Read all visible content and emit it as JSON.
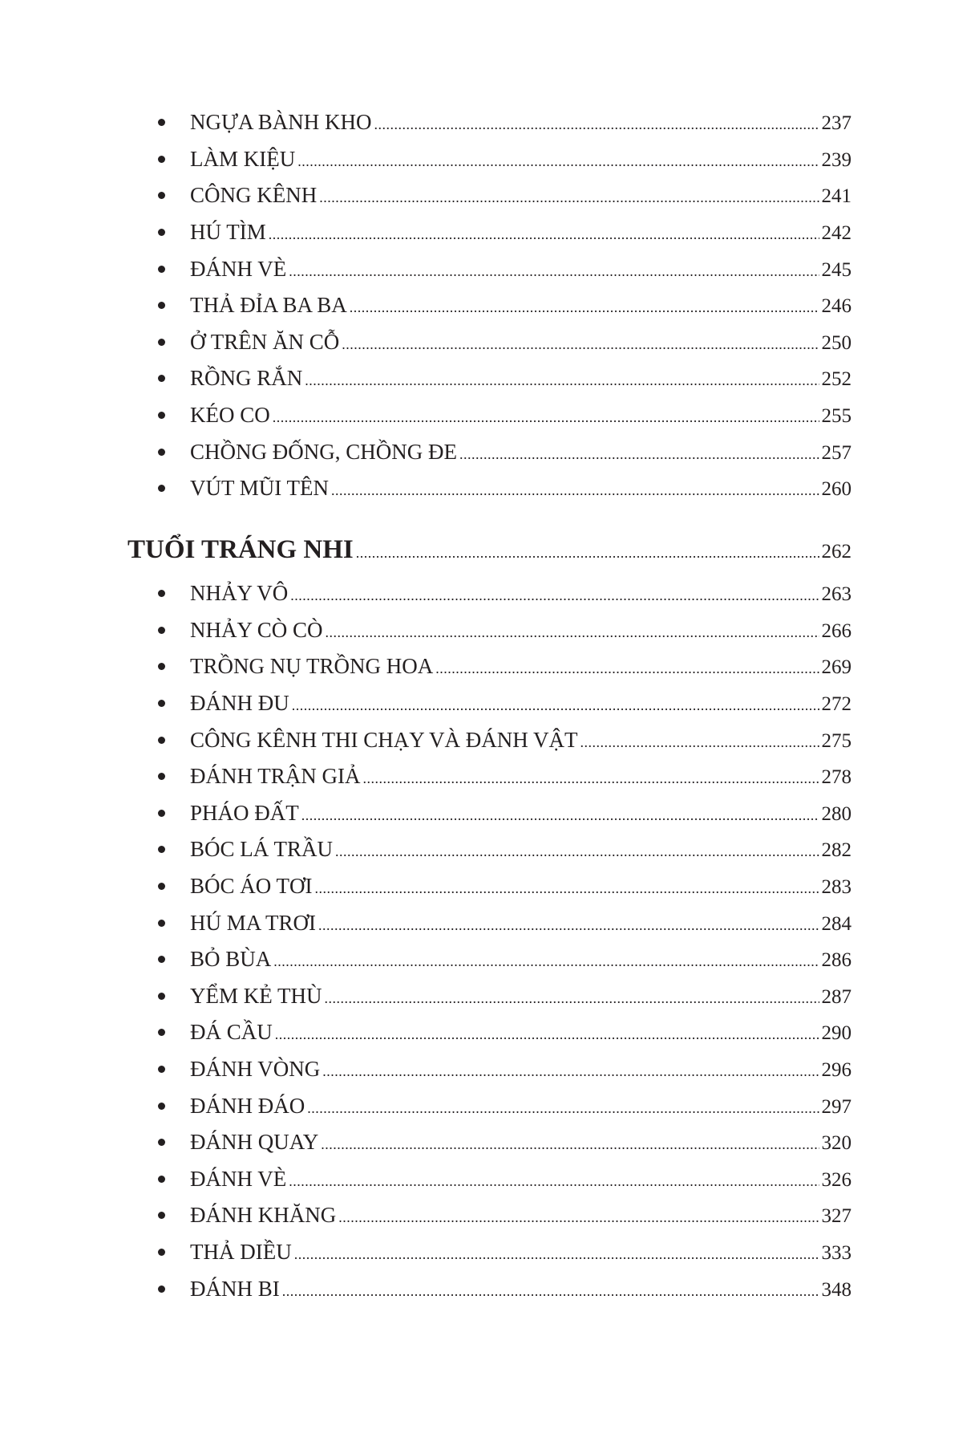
{
  "section_1": {
    "items": [
      {
        "title": "NGỰA BÀNH KHO",
        "page": "237"
      },
      {
        "title": "LÀM KIỆU",
        "page": "239"
      },
      {
        "title": "CÔNG KÊNH",
        "page": "241"
      },
      {
        "title": "HÚ TÌM",
        "page": "242"
      },
      {
        "title": "ĐÁNH VÈ",
        "page": "245"
      },
      {
        "title": "THẢ ĐỈA BA BA",
        "page": "246"
      },
      {
        "title": "Ở TRÊN ĂN CỖ",
        "page": "250"
      },
      {
        "title": "RỒNG RẮN",
        "page": "252"
      },
      {
        "title": "KÉO CO",
        "page": "255"
      },
      {
        "title": "CHỒNG ĐỐNG, CHỒNG ĐE",
        "page": "257"
      },
      {
        "title": "VÚT MŨI TÊN",
        "page": "260"
      }
    ]
  },
  "section_2": {
    "heading": {
      "title": "TUỔI TRÁNG NHI",
      "page": "262"
    },
    "items": [
      {
        "title": "NHẢY VÔ",
        "page": "263"
      },
      {
        "title": "NHẢY CÒ CÒ",
        "page": "266"
      },
      {
        "title": "TRỒNG NỤ TRỒNG HOA",
        "page": "269"
      },
      {
        "title": "ĐÁNH ĐU",
        "page": "272"
      },
      {
        "title": "CÔNG KÊNH THI CHẠY VÀ ĐÁNH VẬT",
        "page": "275"
      },
      {
        "title": "ĐÁNH TRẬN GIẢ",
        "page": "278"
      },
      {
        "title": "PHÁO ĐẤT",
        "page": "280"
      },
      {
        "title": "BÓC LÁ TRẦU",
        "page": "282"
      },
      {
        "title": "BÓC ÁO TƠI",
        "page": "283"
      },
      {
        "title": "HÚ MA TRƠI",
        "page": "284"
      },
      {
        "title": "BỎ BÙA",
        "page": "286"
      },
      {
        "title": "YỂM KẺ THÙ",
        "page": "287"
      },
      {
        "title": "ĐÁ CẦU",
        "page": "290"
      },
      {
        "title": "ĐÁNH VÒNG",
        "page": "296"
      },
      {
        "title": "ĐÁNH ĐÁO",
        "page": "297"
      },
      {
        "title": "ĐÁNH QUAY",
        "page": "320"
      },
      {
        "title": "ĐÁNH VÈ",
        "page": "326"
      },
      {
        "title": "ĐÁNH KHĂNG",
        "page": "327"
      },
      {
        "title": "THẢ DIỀU",
        "page": "333"
      },
      {
        "title": "ĐÁNH BI",
        "page": "348"
      }
    ]
  }
}
